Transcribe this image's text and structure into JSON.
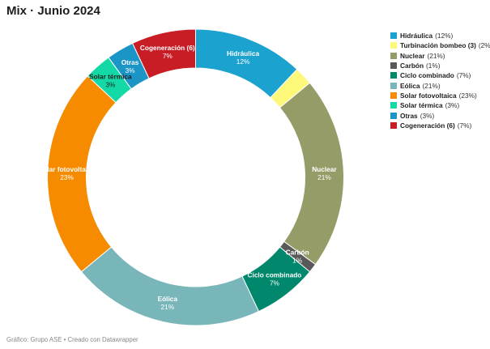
{
  "title": "Mix · Junio 2024",
  "footer": "Gráfico: Grupo ASE • Creado con Datawrapper",
  "chart_data": {
    "type": "pie",
    "donut": true,
    "legend_position": "top-right",
    "slices": [
      {
        "name": "Hidráulica",
        "legend_name": "Hidráulica",
        "value": 12,
        "label_pct": "12%",
        "color": "#1ca2cf",
        "label_name": "Hidráulica",
        "label_value": "12%",
        "label_color": "#ffffff"
      },
      {
        "name": "Turbinación bombeo",
        "legend_name": "Turbinación bombeo (3)",
        "value": 2,
        "label_pct": "2%",
        "color": "#fdf77a",
        "label_name": "",
        "label_value": "",
        "label_color": "#ffffff"
      },
      {
        "name": "Nuclear",
        "legend_name": "Nuclear",
        "value": 21,
        "label_pct": "21%",
        "color": "#969c68",
        "label_name": "Nuclear",
        "label_value": "21%",
        "label_color": "#ffffff"
      },
      {
        "name": "Carbón",
        "legend_name": "Carbón",
        "value": 1,
        "label_pct": "1%",
        "color": "#595959",
        "label_name": "Carbón",
        "label_value": "1%",
        "label_color": "#ffffff"
      },
      {
        "name": "Ciclo combinado",
        "legend_name": "Ciclo combinado",
        "value": 7,
        "label_pct": "7%",
        "color": "#00876c",
        "label_name": "Ciclo combinado",
        "label_value": "7%",
        "label_color": "#ffffff"
      },
      {
        "name": "Eólica",
        "legend_name": "Eólica",
        "value": 21,
        "label_pct": "21%",
        "color": "#78b6ba",
        "label_name": "Eólica",
        "label_value": "21%",
        "label_color": "#ffffff"
      },
      {
        "name": "Solar fotovoltaica",
        "legend_name": "Solar fotovoltaica",
        "value": 23,
        "label_pct": "23%",
        "color": "#f68b00",
        "label_name": "Solar fotovoltaica",
        "label_value": "23%",
        "label_color": "#ffffff"
      },
      {
        "name": "Solar térmica",
        "legend_name": "Solar térmica",
        "value": 3,
        "label_pct": "3%",
        "color": "#13d9a6",
        "label_name": "Solar térmica",
        "label_value": "3%",
        "label_color": "#1d1d1d"
      },
      {
        "name": "Otras",
        "legend_name": "Otras",
        "value": 3,
        "label_pct": "3%",
        "color": "#1b95c5",
        "label_name": "Otras",
        "label_value": "3%",
        "label_color": "#ffffff"
      },
      {
        "name": "Cogeneración",
        "legend_name": "Cogeneración (6)",
        "value": 7,
        "label_pct": "7%",
        "color": "#c81d25",
        "label_name": "Cogeneración (6)",
        "label_value": "7%",
        "label_color": "#ffffff"
      }
    ]
  }
}
